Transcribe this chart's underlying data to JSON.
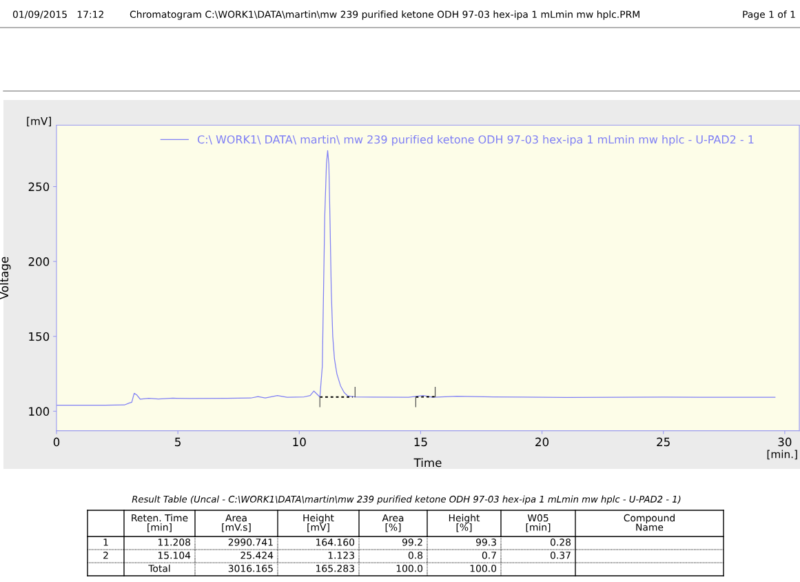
{
  "chart_data": [
    {
      "type": "line",
      "xlabel": "Time",
      "ylabel": "Voltage",
      "xlim": [
        0,
        30.6
      ],
      "ylim": [
        87,
        291
      ],
      "xticks": [
        0,
        5,
        10,
        15,
        20,
        25,
        30
      ],
      "yticks": [
        100,
        150,
        200,
        250
      ],
      "grid": false,
      "legend": "top",
      "marker": "none",
      "line_style": "solid",
      "annotations": [
        "01/09/2015   17:12",
        "Chromatogram C:\\WORK1\\DATA\\martin\\mw 239 purified ketone ODH 97-03 hex-ipa 1 mLmin mw hplc.PRM",
        "Page 1 of 1",
        "[mV]",
        "[min.]"
      ],
      "series": [
        {
          "name": "C:\\ WORK1\\ DATA\\ martin\\ mw 239 purified ketone ODH 97-03 hex-ipa 1 mLmin mw hplc - U-PAD2 - 1",
          "color": "#7f7ff5",
          "x": [
            0,
            1,
            2,
            2.8,
            3.0,
            3.1,
            3.2,
            3.3,
            3.45,
            3.8,
            4.2,
            4.8,
            5.5,
            7,
            8.0,
            8.3,
            8.6,
            9.1,
            9.5,
            10.2,
            10.45,
            10.6,
            10.85,
            10.95,
            11.0,
            11.05,
            11.12,
            11.17,
            11.22,
            11.27,
            11.32,
            11.38,
            11.45,
            11.55,
            11.7,
            11.85,
            12.0,
            12.3,
            13,
            14.5,
            15.1,
            15.5,
            16.5,
            18,
            21,
            25,
            29.6
          ],
          "values": [
            104,
            104,
            104,
            104.2,
            105.5,
            106,
            112,
            111,
            108,
            108.6,
            108.2,
            108.7,
            108.5,
            108.6,
            108.8,
            109.8,
            108.9,
            110.5,
            109.3,
            109.6,
            110.5,
            113.5,
            109.5,
            130,
            180,
            230,
            265,
            274,
            265,
            225,
            180,
            150,
            135,
            125,
            117,
            112.5,
            110.2,
            109.5,
            109.4,
            109.3,
            110.5,
            109.3,
            110,
            109.6,
            109.2,
            109.4,
            109.3
          ]
        },
        {
          "color": "#000000",
          "line_style": "dotted",
          "x": [
            10.85,
            12.2,
            12.21,
            14.8,
            15.6
          ],
          "values": [
            109.5,
            109.5,
            null,
            109.5,
            109.7
          ]
        },
        {
          "color": "#555555",
          "x": [
            10.85,
            10.85,
            10.86,
            12.3,
            12.3,
            12.31,
            14.8,
            14.8,
            14.81,
            15.6,
            15.6
          ],
          "values": [
            103,
            109.5,
            null,
            109.5,
            116,
            null,
            103,
            109.5,
            null,
            109.7,
            116
          ]
        }
      ]
    },
    {
      "type": "other",
      "title": "Result Table (Uncal - C:\\WORK1\\DATA\\martin\\mw 239 purified ketone ODH 97-03 hex-ipa 1 mLmin mw hplc - U-PAD2 - 1)",
      "annotations": [
        "Reten. Time\n[min]",
        "Area\n[mV.s]",
        "Height\n[mV]",
        "Area\n[%]",
        "Height\n[%]",
        "W05\n[min]",
        "Compound\nName",
        "1",
        "11.208",
        "2990.741",
        "164.160",
        "99.2",
        "99.3",
        "0.28",
        "2",
        "15.104",
        "25.424",
        "1.123",
        "0.8",
        "0.7",
        "0.37",
        "Total",
        "3016.165",
        "165.283",
        "100.0",
        "100.0"
      ]
    }
  ]
}
